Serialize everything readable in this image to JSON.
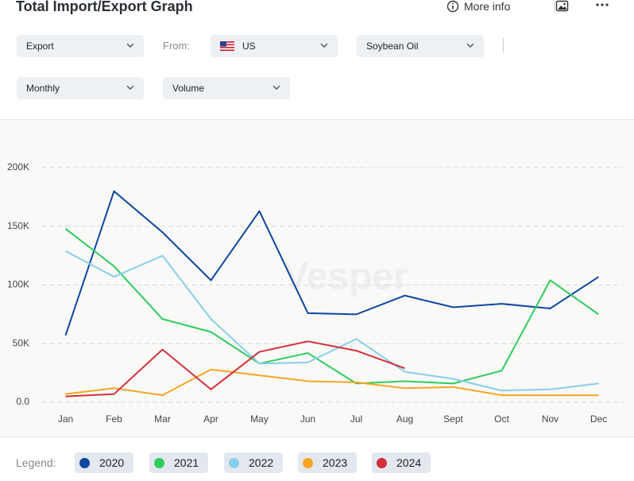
{
  "header": {
    "title": "Total Import/Export Graph",
    "more_info": "More info"
  },
  "controls": {
    "direction": "Export",
    "from_label": "From:",
    "country": "US",
    "product": "Soybean Oil",
    "period": "Monthly",
    "measure": "Volume"
  },
  "watermark": "Vesper",
  "legend_label": "Legend:",
  "chart_data": {
    "type": "line",
    "categories": [
      "Jan",
      "Feb",
      "Mar",
      "Apr",
      "May",
      "Jun",
      "Jul",
      "Aug",
      "Sept",
      "Oct",
      "Nov",
      "Dec"
    ],
    "series": [
      {
        "name": "2020",
        "color": "#0d47a1",
        "values": [
          57000,
          180000,
          145000,
          104000,
          163000,
          76000,
          75000,
          91000,
          81000,
          84000,
          80000,
          107000
        ]
      },
      {
        "name": "2021",
        "color": "#2ecc5e",
        "values": [
          148000,
          116000,
          71000,
          60000,
          33000,
          42000,
          16000,
          18000,
          16000,
          27000,
          104000,
          75000
        ]
      },
      {
        "name": "2022",
        "color": "#87ceeb",
        "values": [
          129000,
          107000,
          125000,
          71000,
          33000,
          34000,
          54000,
          26000,
          20000,
          10000,
          11000,
          16000
        ]
      },
      {
        "name": "2023",
        "color": "#f5a623",
        "values": [
          7000,
          12000,
          6000,
          28000,
          23000,
          18000,
          17000,
          12000,
          13000,
          6000,
          6000,
          6000
        ]
      },
      {
        "name": "2024",
        "color": "#d32f3c",
        "values": [
          5000,
          7000,
          45000,
          11000,
          43000,
          52000,
          44000,
          29000,
          null,
          null,
          null,
          null
        ]
      }
    ],
    "ylim": [
      0,
      200000
    ],
    "yticks": [
      {
        "value": 0,
        "label": "0.0"
      },
      {
        "value": 50000,
        "label": "50K"
      },
      {
        "value": 100000,
        "label": "100K"
      },
      {
        "value": 150000,
        "label": "150K"
      },
      {
        "value": 200000,
        "label": "200K"
      }
    ],
    "grid": true
  }
}
